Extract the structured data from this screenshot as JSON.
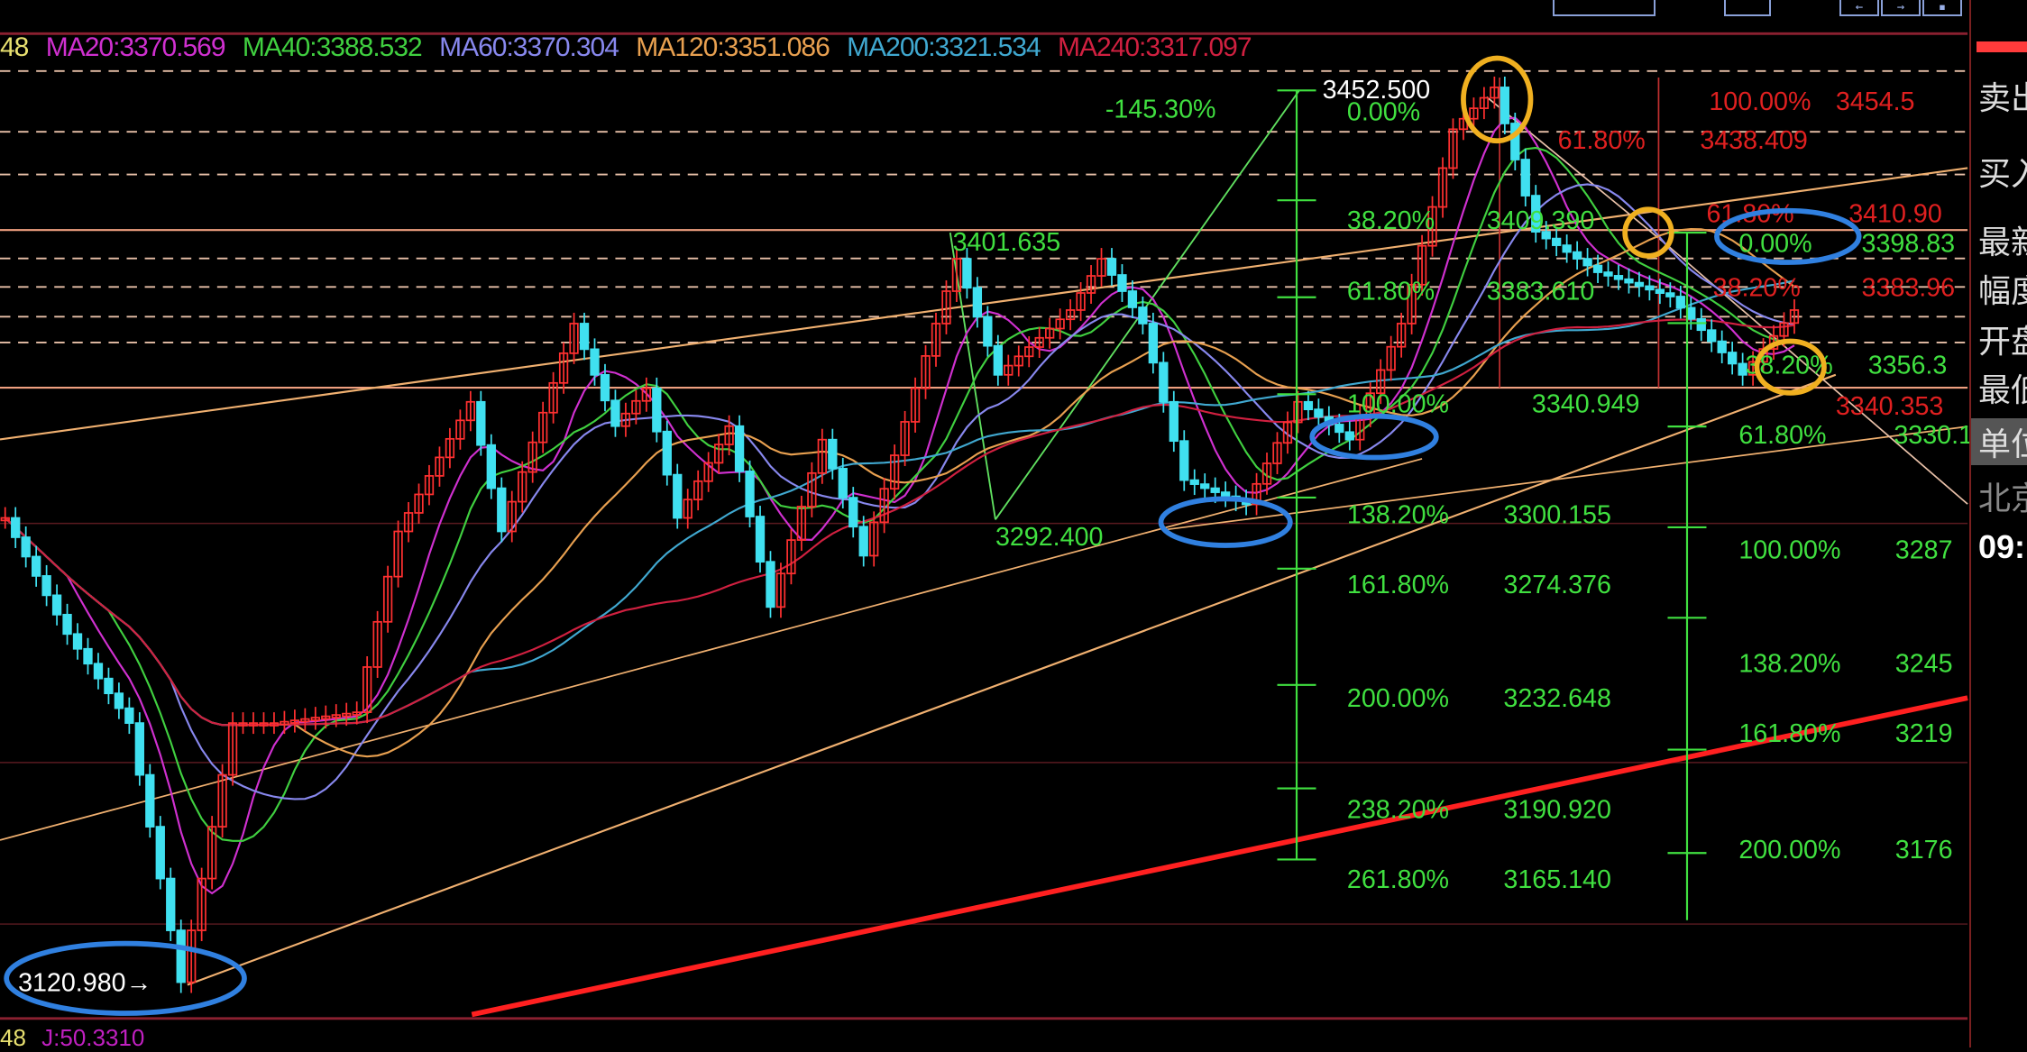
{
  "legend": [
    {
      "text": "48",
      "color": "#e8e070"
    },
    {
      "text": "MA20:3370.569",
      "color": "#d030d0"
    },
    {
      "text": "MA40:3388.532",
      "color": "#40d040"
    },
    {
      "text": "MA60:3370.304",
      "color": "#8888ee"
    },
    {
      "text": "MA120:3351.086",
      "color": "#e8a050"
    },
    {
      "text": "MA200:3321.534",
      "color": "#40a8d0"
    },
    {
      "text": "MA240:3317.097",
      "color": "#d02040"
    }
  ],
  "bottom_row": [
    {
      "text": "48",
      "color": "#e8e070"
    },
    {
      "text": "J:50.3310",
      "color": "#c020c0"
    }
  ],
  "toolbar": {
    "prev_icon": "←",
    "next_icon": "→",
    "menu_icon": "▪"
  },
  "side_panel": {
    "items": [
      "卖出",
      "买入",
      "最新",
      "幅度",
      "开盘",
      "最低",
      "单位",
      "北京"
    ],
    "time": "09:"
  },
  "colors": {
    "up": "#ff3030",
    "down": "#40e0f0",
    "fib_green": "#40e040",
    "fib_red": "#e02020",
    "trend": "#f0b070",
    "support": "#ff2020",
    "highlight_blue": "#3080e0",
    "highlight_orange": "#f0b020"
  },
  "chart_data": {
    "type": "candlestick",
    "title": "",
    "xlabel": "",
    "ylabel": "",
    "ylim": [
      3110,
      3460
    ],
    "price_path": [
      {
        "bar": 0,
        "price": 3293
      },
      {
        "bar": 6,
        "price": 3250
      },
      {
        "bar": 12,
        "price": 3217
      },
      {
        "bar": 17,
        "price": 3121
      },
      {
        "bar": 22,
        "price": 3217
      },
      {
        "bar": 26,
        "price": 3217
      },
      {
        "bar": 34,
        "price": 3221
      },
      {
        "bar": 38,
        "price": 3288
      },
      {
        "bar": 45,
        "price": 3336
      },
      {
        "bar": 48,
        "price": 3288
      },
      {
        "bar": 55,
        "price": 3365
      },
      {
        "bar": 59,
        "price": 3327
      },
      {
        "bar": 62,
        "price": 3341
      },
      {
        "bar": 65,
        "price": 3293
      },
      {
        "bar": 70,
        "price": 3327
      },
      {
        "bar": 74,
        "price": 3260
      },
      {
        "bar": 79,
        "price": 3322
      },
      {
        "bar": 83,
        "price": 3279
      },
      {
        "bar": 88,
        "price": 3341
      },
      {
        "bar": 92,
        "price": 3389
      },
      {
        "bar": 96,
        "price": 3346
      },
      {
        "bar": 103,
        "price": 3370
      },
      {
        "bar": 106,
        "price": 3389
      },
      {
        "bar": 110,
        "price": 3365
      },
      {
        "bar": 114,
        "price": 3307
      },
      {
        "bar": 120,
        "price": 3298
      },
      {
        "bar": 125,
        "price": 3336
      },
      {
        "bar": 130,
        "price": 3322
      },
      {
        "bar": 135,
        "price": 3365
      },
      {
        "bar": 140,
        "price": 3437
      },
      {
        "bar": 144,
        "price": 3452.5
      },
      {
        "bar": 148,
        "price": 3399
      },
      {
        "bar": 154,
        "price": 3384
      },
      {
        "bar": 161,
        "price": 3375
      },
      {
        "bar": 168,
        "price": 3346
      },
      {
        "bar": 173,
        "price": 3370
      }
    ],
    "point_labels": [
      {
        "text": "3452.500",
        "color": "#ffffff"
      },
      {
        "text": "3120.980→",
        "color": "#ffffff"
      },
      {
        "text": "3401.635",
        "color": "#40e040"
      },
      {
        "text": "3292.400",
        "color": "#40e040"
      },
      {
        "text": "-145.30%",
        "color": "#40e040"
      }
    ],
    "fib_left": [
      {
        "pct": "0.00%",
        "value": null
      },
      {
        "pct": "38.20%",
        "value": "3409.390"
      },
      {
        "pct": "61.80%",
        "value": "3383.610"
      },
      {
        "pct": "100.00%",
        "value": "3340.949"
      },
      {
        "pct": "138.20%",
        "value": "3300.155"
      },
      {
        "pct": "161.80%",
        "value": "3274.376"
      },
      {
        "pct": "200.00%",
        "value": "3232.648"
      },
      {
        "pct": "238.20%",
        "value": "3190.920"
      },
      {
        "pct": "261.80%",
        "value": "3165.140"
      }
    ],
    "fib_red": [
      {
        "pct": "100.00%",
        "value": "3454.5"
      },
      {
        "pct": "61.80%",
        "value": "3438.409"
      },
      {
        "pct": "61.80%",
        "value": "3410.90"
      },
      {
        "pct": "38.20%",
        "value": "3383.96"
      },
      {
        "pct": "",
        "value": "3340.353"
      }
    ],
    "fib_right": [
      {
        "pct": "0.00%",
        "value": "3398.83"
      },
      {
        "pct": "38.20%",
        "value": "3356.3"
      },
      {
        "pct": "61.80%",
        "value": "3330.1"
      },
      {
        "pct": "100.00%",
        "value": "3287"
      },
      {
        "pct": "138.20%",
        "value": "3245"
      },
      {
        "pct": "161.80%",
        "value": "3219"
      },
      {
        "pct": "200.00%",
        "value": "3176"
      }
    ],
    "moving_averages": [
      {
        "name": "MA20",
        "value": 3370.569,
        "color": "#d030d0"
      },
      {
        "name": "MA40",
        "value": 3388.532,
        "color": "#40d040"
      },
      {
        "name": "MA60",
        "value": 3370.304,
        "color": "#8888ee"
      },
      {
        "name": "MA120",
        "value": 3351.086,
        "color": "#e8a050"
      },
      {
        "name": "MA200",
        "value": 3321.534,
        "color": "#40a8d0"
      },
      {
        "name": "MA240",
        "value": 3317.097,
        "color": "#d02040"
      }
    ]
  }
}
